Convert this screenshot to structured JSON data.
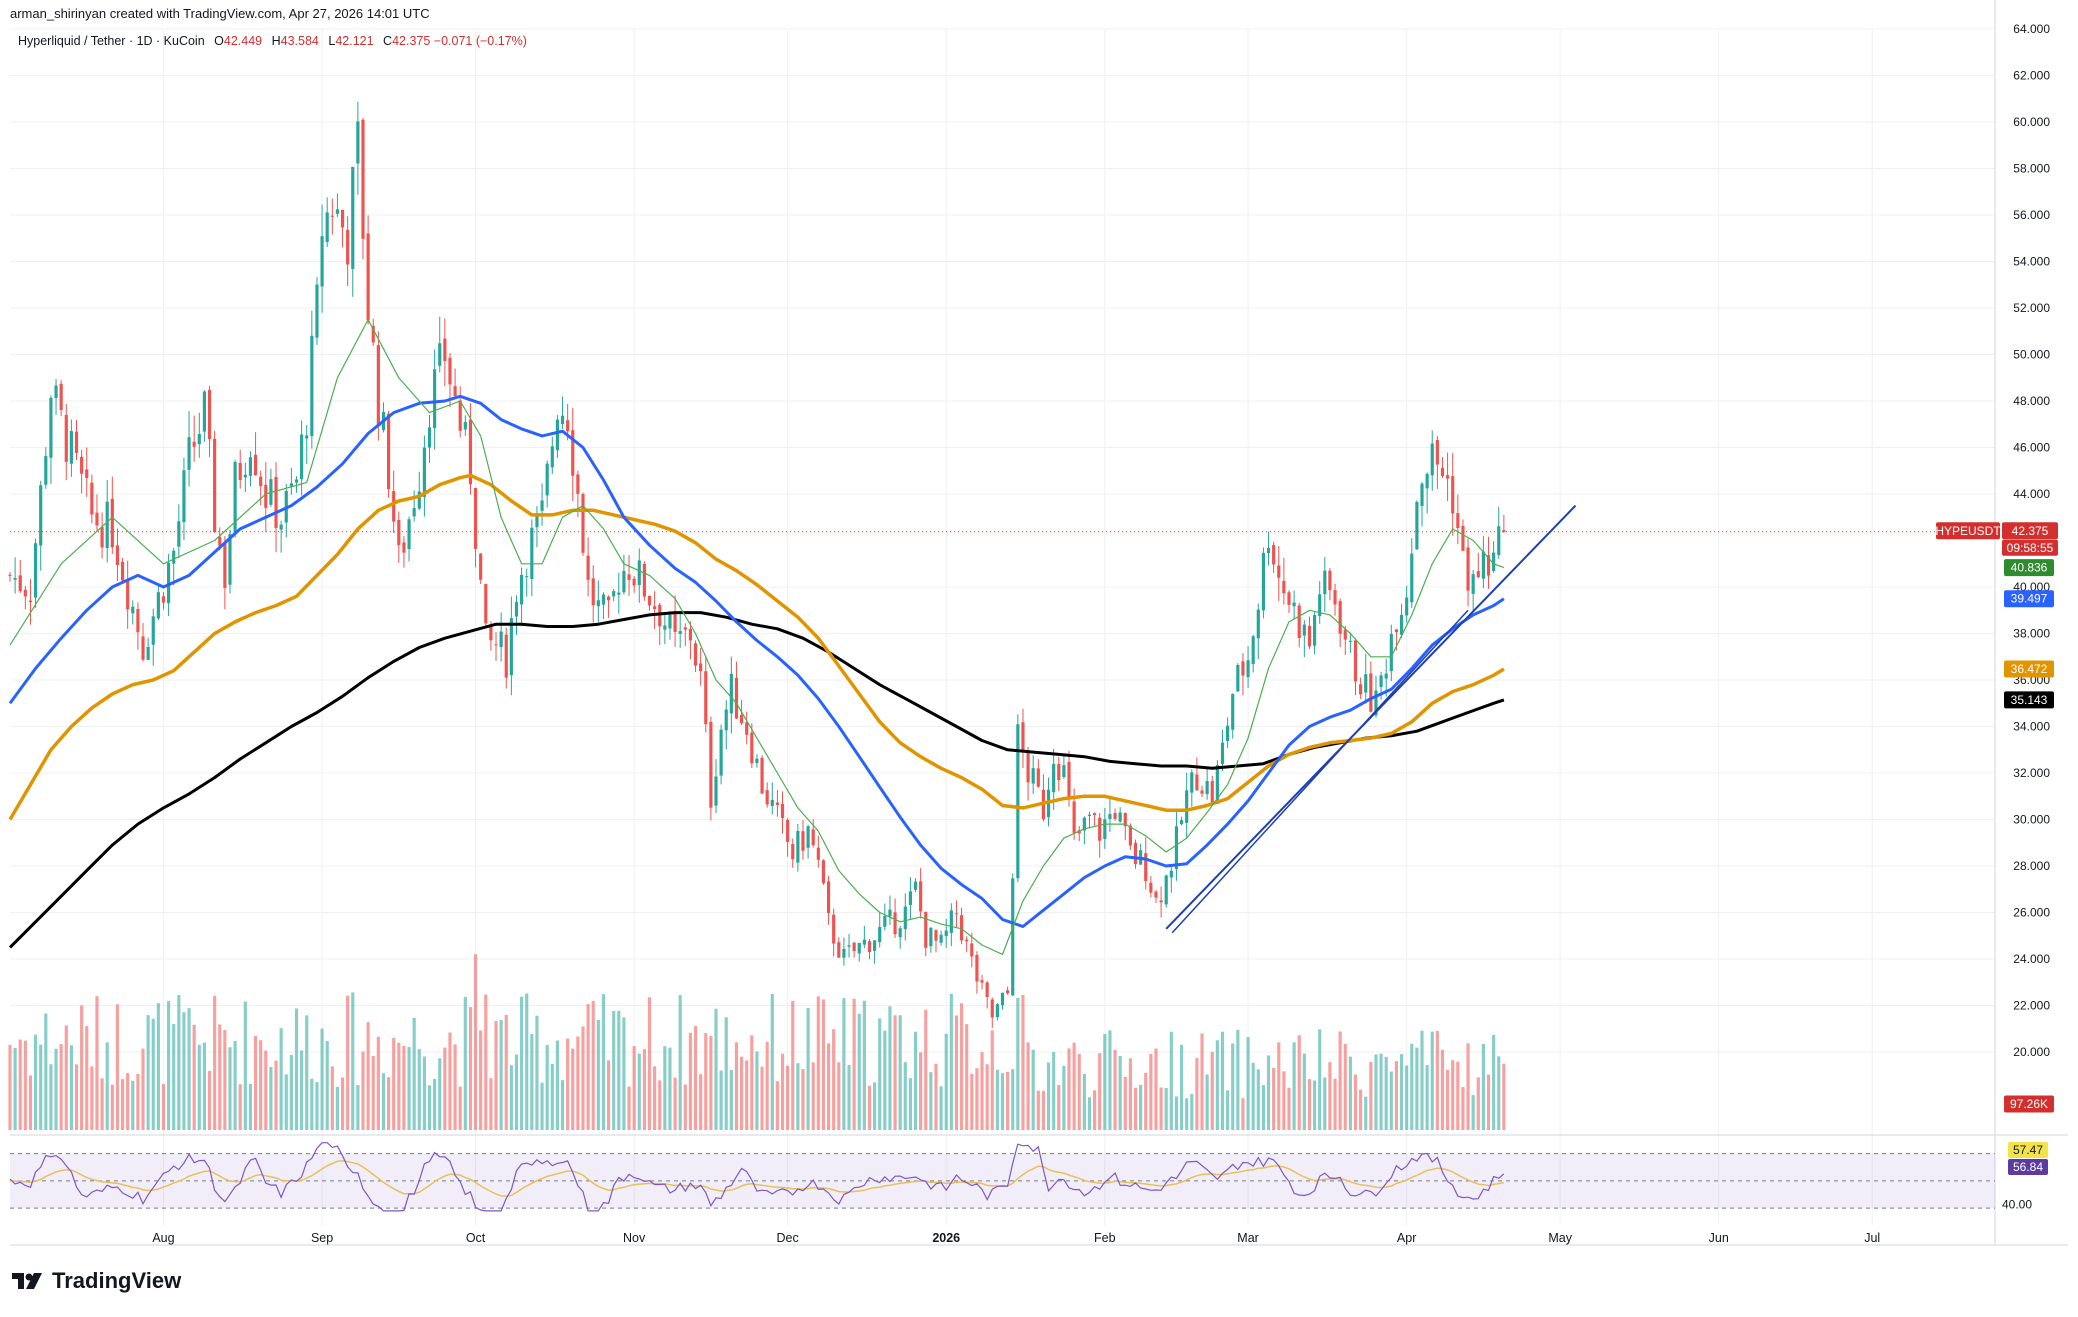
{
  "header": {
    "credit": "arman_shirinyan created with TradingView.com, Apr 27, 2026 14:01 UTC"
  },
  "legend": {
    "pair": "Hyperliquid / Tether · 1D · KuCoin",
    "open_label": "O",
    "open": "42.449",
    "high_label": "H",
    "high": "43.584",
    "low_label": "L",
    "low": "42.121",
    "close_label": "C",
    "close": "42.375",
    "change": "−0.071 (−0.17%)"
  },
  "brand": {
    "name": "TradingView",
    "logo_icon": "tradingview-logo-icon"
  },
  "colors": {
    "up": "#26a69a",
    "down": "#ef5350",
    "ema20": "#4caf50",
    "ema50": "#2962ff",
    "ema100": "#e09500",
    "ema200": "#000000",
    "rsi": "#7e57c2",
    "rsi_ma": "#e6c15a",
    "trendline": "#1e40af"
  },
  "chart_data": {
    "type": "candlestick",
    "symbol": "HYPEUSDT",
    "interval": "1D",
    "y_axis": {
      "range": [
        18,
        64.5
      ],
      "ticks": [
        "64.000",
        "62.000",
        "60.000",
        "58.000",
        "56.000",
        "54.000",
        "52.000",
        "50.000",
        "48.000",
        "46.000",
        "44.000",
        "40.000",
        "38.000",
        "36.000",
        "34.000",
        "32.000",
        "30.000",
        "28.000",
        "26.000",
        "24.000",
        "22.000",
        "20.000"
      ]
    },
    "x_axis": {
      "labels": [
        {
          "text": "Aug",
          "day": 0
        },
        {
          "text": "Sep",
          "day": 31
        },
        {
          "text": "Oct",
          "day": 61
        },
        {
          "text": "Nov",
          "day": 92
        },
        {
          "text": "Dec",
          "day": 122
        },
        {
          "text": "2026",
          "day": 153
        },
        {
          "text": "Feb",
          "day": 184
        },
        {
          "text": "Mar",
          "day": 212
        },
        {
          "text": "Apr",
          "day": 243
        },
        {
          "text": "May",
          "day": 273
        },
        {
          "text": "Jun",
          "day": 304
        },
        {
          "text": "Jul",
          "day": 334
        }
      ]
    },
    "price_path": [
      [
        -30,
        40.5
      ],
      [
        -26,
        40
      ],
      [
        -24,
        44
      ],
      [
        -22,
        48.5
      ],
      [
        -20,
        47
      ],
      [
        -17,
        45
      ],
      [
        -14,
        43
      ],
      [
        -10,
        42.5
      ],
      [
        -7,
        40
      ],
      [
        -4,
        37.5
      ],
      [
        -1,
        39.5
      ],
      [
        2,
        41.5
      ],
      [
        5,
        45.5
      ],
      [
        8,
        47.5
      ],
      [
        10,
        43
      ],
      [
        12,
        40.5
      ],
      [
        14,
        44.5
      ],
      [
        17,
        46.5
      ],
      [
        20,
        44
      ],
      [
        23,
        43
      ],
      [
        26,
        44.5
      ],
      [
        28,
        47.5
      ],
      [
        30,
        52
      ],
      [
        31,
        55.5
      ],
      [
        33,
        56.5
      ],
      [
        36,
        55
      ],
      [
        38,
        59
      ],
      [
        40,
        52
      ],
      [
        42,
        48
      ],
      [
        44,
        45
      ],
      [
        46,
        41
      ],
      [
        48,
        43
      ],
      [
        50,
        45
      ],
      [
        52,
        48
      ],
      [
        55,
        50
      ],
      [
        58,
        47
      ],
      [
        60,
        45
      ],
      [
        62,
        40
      ],
      [
        63,
        37.5
      ],
      [
        65,
        37.5
      ],
      [
        67,
        37
      ],
      [
        69,
        40
      ],
      [
        71,
        41.5
      ],
      [
        74,
        43
      ],
      [
        77,
        48
      ],
      [
        79,
        47.5
      ],
      [
        81,
        44
      ],
      [
        83,
        40
      ],
      [
        85,
        39
      ],
      [
        87,
        38.5
      ],
      [
        89,
        40.5
      ],
      [
        91,
        41
      ],
      [
        94,
        40
      ],
      [
        97,
        39
      ],
      [
        100,
        37.5
      ],
      [
        103,
        38
      ],
      [
        105,
        36
      ],
      [
        107,
        31
      ],
      [
        109,
        34
      ],
      [
        111,
        35.5
      ],
      [
        114,
        34
      ],
      [
        117,
        31.5
      ],
      [
        120,
        30
      ],
      [
        123,
        28.5
      ],
      [
        126,
        29.5
      ],
      [
        128,
        28
      ],
      [
        130,
        25.5
      ],
      [
        133,
        24
      ],
      [
        136,
        24.5
      ],
      [
        139,
        25
      ],
      [
        142,
        25.5
      ],
      [
        145,
        26
      ],
      [
        147,
        27
      ],
      [
        149,
        25
      ],
      [
        152,
        24.5
      ],
      [
        155,
        26
      ],
      [
        157,
        24.5
      ],
      [
        160,
        22.5
      ],
      [
        162,
        21.5
      ],
      [
        165,
        22.5
      ],
      [
        166,
        28
      ],
      [
        167,
        33.5
      ],
      [
        169,
        32
      ],
      [
        172,
        30.5
      ],
      [
        174,
        33
      ],
      [
        176,
        32
      ],
      [
        178,
        29
      ],
      [
        181,
        30
      ],
      [
        183,
        29.5
      ],
      [
        186,
        30.5
      ],
      [
        189,
        28.5
      ],
      [
        192,
        28
      ],
      [
        194,
        26.5
      ],
      [
        196,
        27.5
      ],
      [
        198,
        29
      ],
      [
        200,
        31
      ],
      [
        202,
        32
      ],
      [
        205,
        31
      ],
      [
        207,
        33
      ],
      [
        209,
        35.5
      ],
      [
        212,
        37
      ],
      [
        214,
        39.5
      ],
      [
        216,
        42.5
      ],
      [
        218,
        40.5
      ],
      [
        221,
        39
      ],
      [
        224,
        37.5
      ],
      [
        226,
        40
      ],
      [
        229,
        39.5
      ],
      [
        232,
        37
      ],
      [
        235,
        35.5
      ],
      [
        237,
        35
      ],
      [
        239,
        37
      ],
      [
        241,
        39
      ],
      [
        243,
        40
      ],
      [
        245,
        44
      ],
      [
        246,
        45
      ],
      [
        248,
        45.5
      ],
      [
        250,
        45
      ],
      [
        252,
        44
      ],
      [
        254,
        41
      ],
      [
        256,
        40
      ],
      [
        258,
        41
      ],
      [
        260,
        41
      ],
      [
        262,
        42.375
      ]
    ],
    "volume_series": {
      "last": "97.26K"
    },
    "ema20": [
      [
        -30,
        37.5
      ],
      [
        -20,
        41
      ],
      [
        -10,
        43
      ],
      [
        0,
        41
      ],
      [
        10,
        42
      ],
      [
        20,
        44
      ],
      [
        28,
        44.5
      ],
      [
        34,
        49
      ],
      [
        40,
        51.5
      ],
      [
        46,
        49
      ],
      [
        52,
        47.5
      ],
      [
        58,
        48
      ],
      [
        62,
        46.5
      ],
      [
        66,
        43
      ],
      [
        70,
        41
      ],
      [
        74,
        41
      ],
      [
        78,
        43
      ],
      [
        82,
        43.5
      ],
      [
        86,
        42.5
      ],
      [
        90,
        41
      ],
      [
        95,
        40.5
      ],
      [
        100,
        39.5
      ],
      [
        104,
        38
      ],
      [
        108,
        36
      ],
      [
        112,
        35
      ],
      [
        116,
        33.5
      ],
      [
        120,
        32
      ],
      [
        124,
        30.5
      ],
      [
        128,
        29.5
      ],
      [
        132,
        27.8
      ],
      [
        136,
        26.8
      ],
      [
        140,
        26
      ],
      [
        144,
        25.6
      ],
      [
        148,
        25.8
      ],
      [
        152,
        25.5
      ],
      [
        156,
        25.3
      ],
      [
        160,
        24.6
      ],
      [
        164,
        24.2
      ],
      [
        168,
        26.5
      ],
      [
        172,
        28
      ],
      [
        176,
        29.2
      ],
      [
        180,
        29.6
      ],
      [
        184,
        29.8
      ],
      [
        188,
        29.8
      ],
      [
        192,
        29.3
      ],
      [
        196,
        28.6
      ],
      [
        200,
        29.2
      ],
      [
        204,
        30.3
      ],
      [
        208,
        31.5
      ],
      [
        212,
        33.5
      ],
      [
        216,
        36.5
      ],
      [
        220,
        38.5
      ],
      [
        224,
        39
      ],
      [
        228,
        38.8
      ],
      [
        232,
        38
      ],
      [
        236,
        37
      ],
      [
        240,
        37
      ],
      [
        244,
        38.8
      ],
      [
        248,
        41
      ],
      [
        252,
        42.5
      ],
      [
        256,
        42
      ],
      [
        260,
        41
      ],
      [
        262,
        40.836
      ]
    ],
    "ema50": [
      [
        -30,
        35
      ],
      [
        -25,
        36.5
      ],
      [
        -20,
        37.8
      ],
      [
        -15,
        39
      ],
      [
        -10,
        40
      ],
      [
        -5,
        40.5
      ],
      [
        0,
        40
      ],
      [
        5,
        40.5
      ],
      [
        10,
        41.5
      ],
      [
        15,
        42.5
      ],
      [
        20,
        43
      ],
      [
        25,
        43.5
      ],
      [
        30,
        44.3
      ],
      [
        35,
        45.3
      ],
      [
        40,
        46.6
      ],
      [
        45,
        47.5
      ],
      [
        50,
        47.9
      ],
      [
        55,
        48
      ],
      [
        58,
        48.2
      ],
      [
        62,
        47.9
      ],
      [
        66,
        47.2
      ],
      [
        70,
        46.8
      ],
      [
        74,
        46.5
      ],
      [
        78,
        46.7
      ],
      [
        82,
        46
      ],
      [
        86,
        44.6
      ],
      [
        90,
        43
      ],
      [
        95,
        41.8
      ],
      [
        100,
        40.8
      ],
      [
        104,
        40.2
      ],
      [
        108,
        39.4
      ],
      [
        112,
        38.5
      ],
      [
        116,
        37.7
      ],
      [
        120,
        37
      ],
      [
        124,
        36.2
      ],
      [
        128,
        35.2
      ],
      [
        132,
        34
      ],
      [
        136,
        32.7
      ],
      [
        140,
        31.4
      ],
      [
        144,
        30.1
      ],
      [
        148,
        28.9
      ],
      [
        152,
        27.9
      ],
      [
        156,
        27.2
      ],
      [
        160,
        26.6
      ],
      [
        164,
        25.7
      ],
      [
        168,
        25.4
      ],
      [
        172,
        26.1
      ],
      [
        176,
        26.8
      ],
      [
        180,
        27.5
      ],
      [
        184,
        28
      ],
      [
        188,
        28.4
      ],
      [
        192,
        28.3
      ],
      [
        196,
        28
      ],
      [
        200,
        28.1
      ],
      [
        204,
        28.9
      ],
      [
        208,
        29.8
      ],
      [
        212,
        30.8
      ],
      [
        216,
        32
      ],
      [
        220,
        33.2
      ],
      [
        224,
        34
      ],
      [
        228,
        34.4
      ],
      [
        232,
        34.7
      ],
      [
        236,
        35.2
      ],
      [
        240,
        35.6
      ],
      [
        244,
        36.5
      ],
      [
        248,
        37.5
      ],
      [
        252,
        38.2
      ],
      [
        256,
        38.8
      ],
      [
        260,
        39.2
      ],
      [
        262,
        39.497
      ]
    ],
    "ema100": [
      [
        -30,
        30
      ],
      [
        -26,
        31.5
      ],
      [
        -22,
        33
      ],
      [
        -18,
        34
      ],
      [
        -14,
        34.8
      ],
      [
        -10,
        35.4
      ],
      [
        -6,
        35.8
      ],
      [
        -2,
        36
      ],
      [
        2,
        36.4
      ],
      [
        6,
        37.2
      ],
      [
        10,
        38
      ],
      [
        14,
        38.5
      ],
      [
        18,
        38.9
      ],
      [
        22,
        39.2
      ],
      [
        26,
        39.6
      ],
      [
        30,
        40.5
      ],
      [
        34,
        41.4
      ],
      [
        38,
        42.5
      ],
      [
        42,
        43.3
      ],
      [
        46,
        43.7
      ],
      [
        50,
        43.9
      ],
      [
        54,
        44.4
      ],
      [
        58,
        44.7
      ],
      [
        60,
        44.8
      ],
      [
        64,
        44.4
      ],
      [
        68,
        43.7
      ],
      [
        72,
        43.1
      ],
      [
        76,
        43.1
      ],
      [
        80,
        43.3
      ],
      [
        84,
        43.3
      ],
      [
        88,
        43.1
      ],
      [
        92,
        42.9
      ],
      [
        96,
        42.7
      ],
      [
        100,
        42.4
      ],
      [
        104,
        41.9
      ],
      [
        108,
        41.2
      ],
      [
        112,
        40.7
      ],
      [
        116,
        40.1
      ],
      [
        120,
        39.4
      ],
      [
        124,
        38.7
      ],
      [
        128,
        37.8
      ],
      [
        132,
        36.6
      ],
      [
        136,
        35.4
      ],
      [
        140,
        34.2
      ],
      [
        144,
        33.3
      ],
      [
        148,
        32.7
      ],
      [
        152,
        32.2
      ],
      [
        156,
        31.8
      ],
      [
        160,
        31.3
      ],
      [
        164,
        30.6
      ],
      [
        168,
        30.5
      ],
      [
        172,
        30.7
      ],
      [
        176,
        30.9
      ],
      [
        180,
        31
      ],
      [
        184,
        31
      ],
      [
        188,
        30.8
      ],
      [
        192,
        30.6
      ],
      [
        196,
        30.4
      ],
      [
        200,
        30.4
      ],
      [
        204,
        30.6
      ],
      [
        208,
        30.9
      ],
      [
        212,
        31.6
      ],
      [
        216,
        32.3
      ],
      [
        220,
        32.8
      ],
      [
        224,
        33.1
      ],
      [
        228,
        33.3
      ],
      [
        232,
        33.4
      ],
      [
        236,
        33.5
      ],
      [
        240,
        33.7
      ],
      [
        244,
        34.2
      ],
      [
        248,
        35
      ],
      [
        252,
        35.5
      ],
      [
        256,
        35.8
      ],
      [
        260,
        36.2
      ],
      [
        262,
        36.472
      ]
    ],
    "ema200": [
      [
        -30,
        24.5
      ],
      [
        -25,
        25.6
      ],
      [
        -20,
        26.7
      ],
      [
        -15,
        27.8
      ],
      [
        -10,
        28.9
      ],
      [
        -5,
        29.8
      ],
      [
        0,
        30.5
      ],
      [
        5,
        31.1
      ],
      [
        10,
        31.8
      ],
      [
        15,
        32.6
      ],
      [
        20,
        33.3
      ],
      [
        25,
        34
      ],
      [
        30,
        34.6
      ],
      [
        35,
        35.3
      ],
      [
        40,
        36.1
      ],
      [
        45,
        36.8
      ],
      [
        50,
        37.4
      ],
      [
        55,
        37.8
      ],
      [
        60,
        38.1
      ],
      [
        65,
        38.4
      ],
      [
        70,
        38.4
      ],
      [
        75,
        38.3
      ],
      [
        80,
        38.3
      ],
      [
        85,
        38.4
      ],
      [
        90,
        38.6
      ],
      [
        95,
        38.8
      ],
      [
        100,
        38.9
      ],
      [
        105,
        38.9
      ],
      [
        110,
        38.7
      ],
      [
        115,
        38.4
      ],
      [
        120,
        38.2
      ],
      [
        125,
        37.8
      ],
      [
        130,
        37.2
      ],
      [
        135,
        36.5
      ],
      [
        140,
        35.8
      ],
      [
        145,
        35.2
      ],
      [
        150,
        34.6
      ],
      [
        155,
        34
      ],
      [
        160,
        33.4
      ],
      [
        165,
        33
      ],
      [
        170,
        32.9
      ],
      [
        175,
        32.8
      ],
      [
        180,
        32.7
      ],
      [
        185,
        32.5
      ],
      [
        190,
        32.4
      ],
      [
        195,
        32.3
      ],
      [
        200,
        32.3
      ],
      [
        205,
        32.2
      ],
      [
        210,
        32.3
      ],
      [
        215,
        32.4
      ],
      [
        220,
        32.8
      ],
      [
        225,
        33.1
      ],
      [
        230,
        33.3
      ],
      [
        235,
        33.5
      ],
      [
        240,
        33.6
      ],
      [
        245,
        33.8
      ],
      [
        250,
        34.2
      ],
      [
        255,
        34.6
      ],
      [
        260,
        35
      ],
      [
        262,
        35.143
      ]
    ],
    "trendline": [
      [
        196,
        25.3
      ],
      [
        276,
        43.5
      ]
    ],
    "price_tags": [
      {
        "label": "HYPEUSDT",
        "value": "42.375",
        "timer": "09:58:55",
        "y": 42.375,
        "color": "#d32f2f"
      },
      {
        "label": "",
        "value": "40.836",
        "y": 40.836,
        "color": "#2e8b2e"
      },
      {
        "label": "",
        "value": "39.497",
        "y": 39.497,
        "color": "#2962ff"
      },
      {
        "label": "",
        "value": "36.472",
        "y": 36.472,
        "color": "#e09500"
      },
      {
        "label": "",
        "value": "35.143",
        "y": 35.143,
        "color": "#000000"
      }
    ],
    "rsi": {
      "value_tag": "57.47",
      "ma_tag": "56.84",
      "level_label": "40.00",
      "range": [
        25,
        80
      ],
      "upper_band": 70,
      "mid": 50,
      "lower_band": 30
    }
  }
}
